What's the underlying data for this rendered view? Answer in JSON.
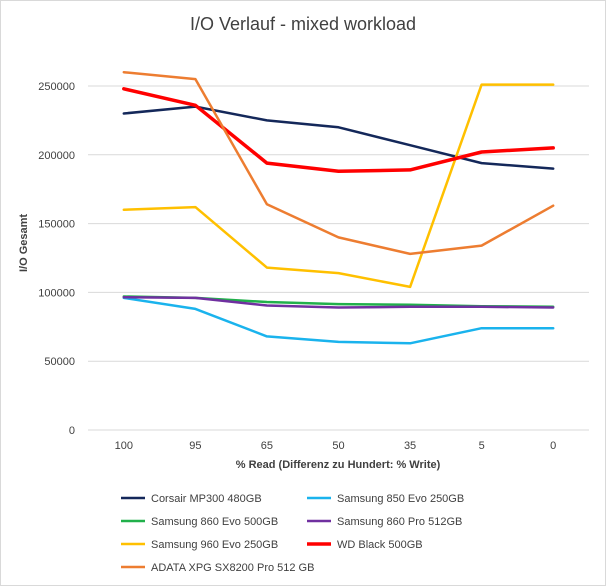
{
  "chart_data": {
    "type": "line",
    "title": "I/O Verlauf - mixed workload",
    "xlabel": "% Read (Differenz zu Hundert: % Write)",
    "ylabel": "I/O Gesamt",
    "categories": [
      "100",
      "95",
      "65",
      "50",
      "35",
      "5",
      "0"
    ],
    "ylim": [
      0,
      250000
    ],
    "yticks": [
      "0",
      "50000",
      "100000",
      "150000",
      "200000",
      "250000"
    ],
    "grid": "horizontal",
    "legend_position": "bottom",
    "series": [
      {
        "name": "Corsair MP300 480GB",
        "color": "#14285a",
        "values": [
          230000,
          235000,
          225000,
          220000,
          207000,
          194000,
          190000
        ]
      },
      {
        "name": "Samsung 850 Evo 250GB",
        "color": "#1ab3ed",
        "values": [
          96000,
          88000,
          68000,
          64000,
          63000,
          74000,
          74000
        ]
      },
      {
        "name": "Samsung 860 Evo 500GB",
        "color": "#21b04b",
        "values": [
          97000,
          96000,
          93000,
          91500,
          91000,
          90000,
          89500
        ]
      },
      {
        "name": "Samsung 860 Pro 512GB",
        "color": "#7030a0",
        "values": [
          96500,
          96000,
          90500,
          89000,
          89500,
          89500,
          89000
        ]
      },
      {
        "name": "Samsung 960 Evo 250GB",
        "color": "#ffc000",
        "values": [
          160000,
          162000,
          118000,
          114000,
          104000,
          251000,
          251000
        ]
      },
      {
        "name": "WD Black 500GB",
        "color": "#ff0000",
        "values": [
          248000,
          236000,
          194000,
          188000,
          189000,
          202000,
          205000
        ]
      },
      {
        "name": "ADATA XPG SX8200 Pro 512 GB",
        "color": "#ed7d31",
        "values": [
          260000,
          255000,
          164000,
          140000,
          128000,
          134000,
          163000
        ]
      }
    ]
  }
}
